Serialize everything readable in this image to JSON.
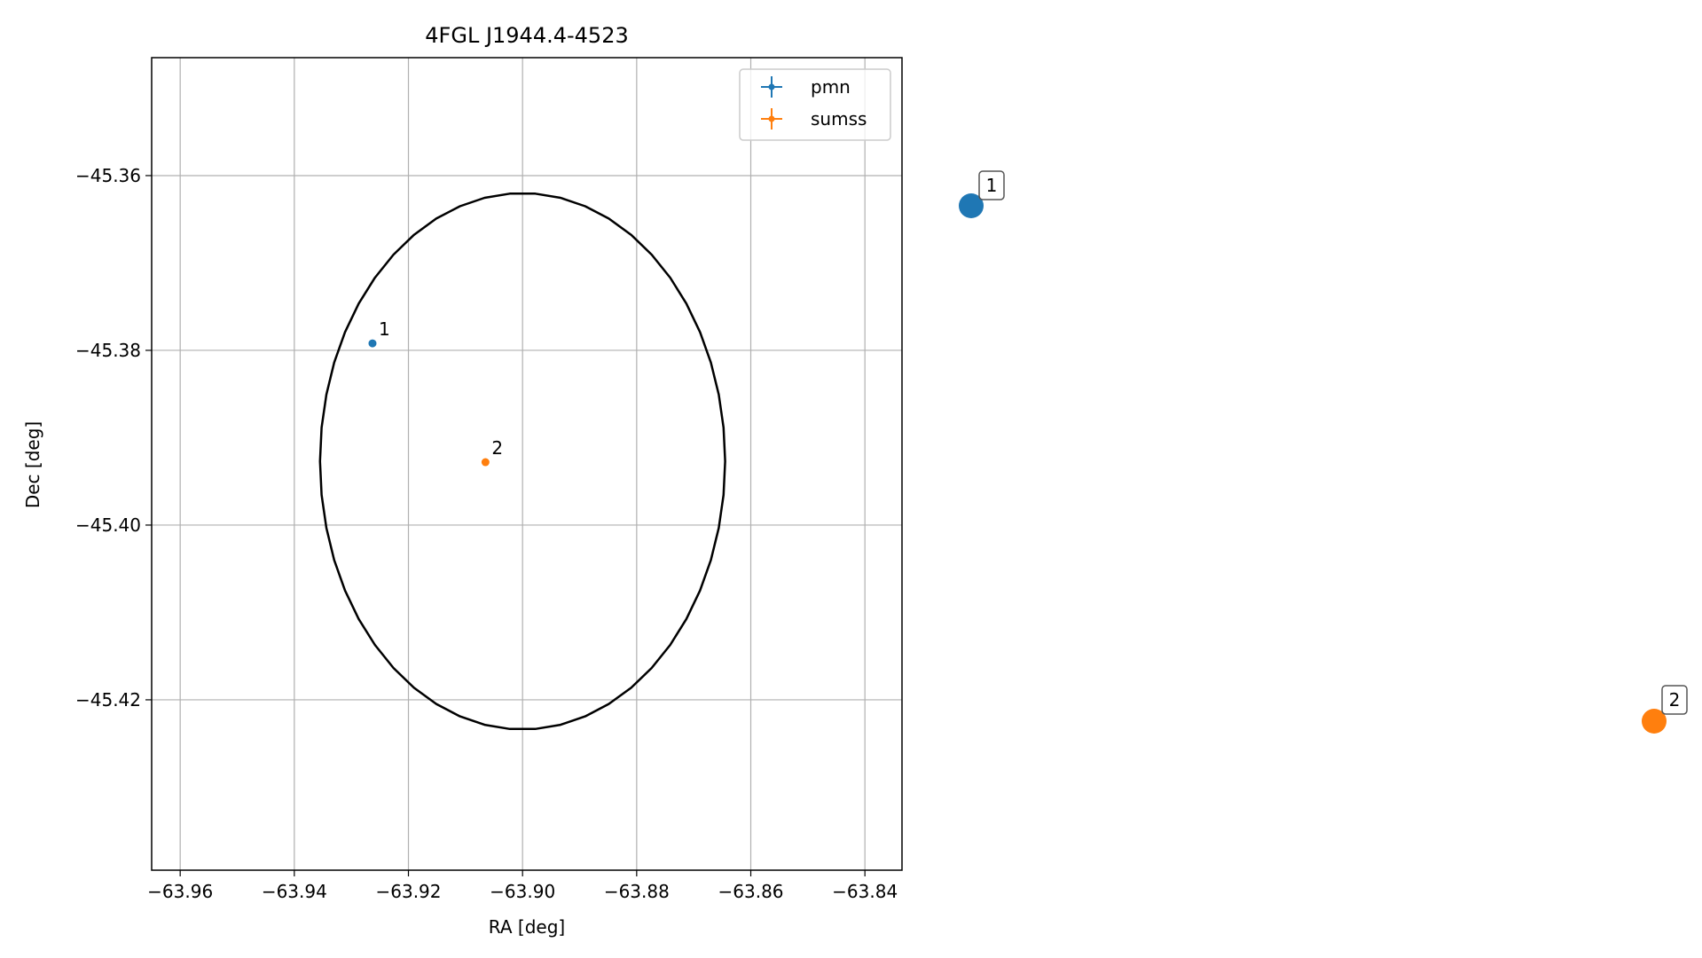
{
  "chart_data": {
    "type": "scatter",
    "title": "4FGL J1944.4-4523",
    "xlabel": "RA [deg]",
    "ylabel": "Dec [deg]",
    "xlim": [
      -63.965,
      -63.8335
    ],
    "ylim": [
      -45.4395,
      -45.3465
    ],
    "grid": true,
    "legend_position": "top-right",
    "xticks": [
      -63.96,
      -63.94,
      -63.92,
      -63.9,
      -63.88,
      -63.86,
      -63.84
    ],
    "xtick_labels": [
      "−63.96",
      "−63.94",
      "−63.92",
      "−63.90",
      "−63.88",
      "−63.86",
      "−63.84"
    ],
    "yticks": [
      -45.36,
      -45.38,
      -45.4,
      -45.42
    ],
    "ytick_labels": [
      "−45.36",
      "−45.38",
      "−45.40",
      "−45.42"
    ],
    "ellipse": {
      "center": [
        -63.9,
        -45.3927
      ],
      "semi_axis_ra": 0.0355,
      "semi_axis_dec": 0.0307,
      "color": "#000000"
    },
    "series": [
      {
        "name": "pmn",
        "color": "#1f77b4",
        "points": [
          {
            "label": "1",
            "x": -63.9263,
            "y": -45.3792
          }
        ]
      },
      {
        "name": "sumss",
        "color": "#ff7f0e",
        "points": [
          {
            "label": "2",
            "x": -63.9065,
            "y": -45.3928
          }
        ]
      }
    ],
    "side_markers": [
      {
        "label": "1",
        "color": "#1f77b4"
      },
      {
        "label": "2",
        "color": "#ff7f0e"
      }
    ]
  }
}
